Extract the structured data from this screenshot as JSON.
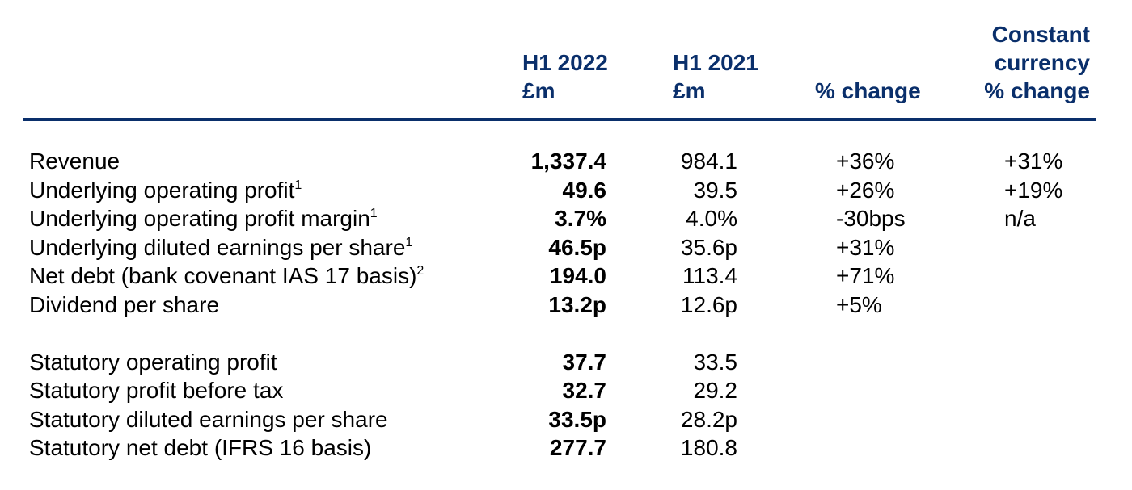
{
  "headers": {
    "h2022": [
      "H1 2022",
      "£m"
    ],
    "h2021": [
      "H1 2021",
      "£m"
    ],
    "pct_change": "% change",
    "constant_currency": [
      "Constant",
      "currency",
      "% change"
    ]
  },
  "rows": [
    {
      "label": "Revenue",
      "sup": "",
      "h2022": "1,337.4",
      "h2021": "984.1",
      "pct": "+36%",
      "cc": "+31%"
    },
    {
      "label": "Underlying operating profit",
      "sup": "1",
      "h2022": "49.6",
      "h2021": "39.5",
      "pct": "+26%",
      "cc": "+19%"
    },
    {
      "label": "Underlying operating profit margin",
      "sup": "1",
      "h2022": "3.7%",
      "h2021": "4.0%",
      "pct": "-30bps",
      "cc": "n/a"
    },
    {
      "label": "Underlying diluted earnings per share",
      "sup": "1",
      "h2022": "46.5p",
      "h2021": "35.6p",
      "pct": "+31%",
      "cc": ""
    },
    {
      "label": "Net debt (bank covenant IAS 17 basis)",
      "sup": "2",
      "h2022": "194.0",
      "h2021": "113.4",
      "pct": "+71%",
      "cc": ""
    },
    {
      "label": "Dividend per share",
      "sup": "",
      "h2022": "13.2p",
      "h2021": "12.6p",
      "pct": "+5%",
      "cc": ""
    },
    {
      "label": "Statutory operating profit",
      "sup": "",
      "h2022": "37.7",
      "h2021": "33.5",
      "pct": "",
      "cc": ""
    },
    {
      "label": "Statutory profit before tax",
      "sup": "",
      "h2022": "32.7",
      "h2021": "29.2",
      "pct": "",
      "cc": ""
    },
    {
      "label": "Statutory diluted earnings per share",
      "sup": "",
      "h2022": "33.5p",
      "h2021": "28.2p",
      "pct": "",
      "cc": ""
    },
    {
      "label": "Statutory net debt (IFRS 16 basis)",
      "sup": "",
      "h2022": "277.7",
      "h2021": "180.8",
      "pct": "",
      "cc": ""
    }
  ]
}
